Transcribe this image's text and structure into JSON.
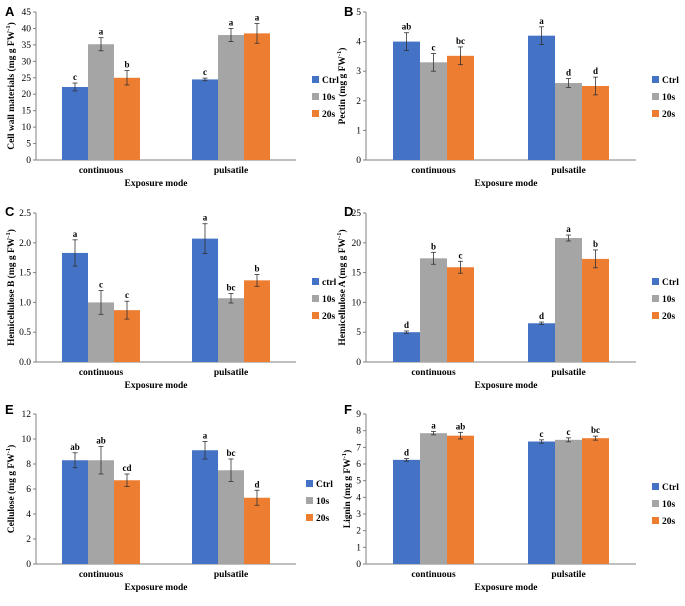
{
  "colors": {
    "Ctrl": "#4472C4",
    "10s": "#A5A5A5",
    "20s": "#ED7D31",
    "axis": "#808080",
    "err": "#333333"
  },
  "chart_data": [
    {
      "panel": "A",
      "type": "bar",
      "ylabel_main": "Cell wall materials  (mg g FW",
      "ylabel_sup": "-1",
      "ylabel_end": ")",
      "xlabel": "Exposure mode",
      "categories": [
        "continuous",
        "pulsatile"
      ],
      "ylim": [
        0,
        45
      ],
      "yticks": [
        0,
        5,
        10,
        15,
        20,
        25,
        30,
        35,
        40,
        45
      ],
      "legend": [
        "Ctrl",
        "10s",
        "20s"
      ],
      "legend_position": "right",
      "series": [
        {
          "name": "Ctrl",
          "values": [
            22.2,
            24.5
          ],
          "errors": [
            1.2,
            0.4
          ],
          "labels": [
            "c",
            "c"
          ]
        },
        {
          "name": "10s",
          "values": [
            35.2,
            38.0
          ],
          "errors": [
            2.0,
            2.0
          ],
          "labels": [
            "a",
            "a"
          ]
        },
        {
          "name": "20s",
          "values": [
            25.0,
            38.5
          ],
          "errors": [
            2.2,
            3.0
          ],
          "labels": [
            "b",
            "a"
          ]
        }
      ]
    },
    {
      "panel": "B",
      "type": "bar",
      "ylabel_main": "Pectin  (mg g FW",
      "ylabel_sup": "-1",
      "ylabel_end": ")",
      "xlabel": "Exposure mode",
      "categories": [
        "continuous",
        "pulsatile"
      ],
      "ylim": [
        0,
        5
      ],
      "yticks": [
        0,
        1,
        2,
        3,
        4,
        5
      ],
      "legend": [
        "Ctrl",
        "10s",
        "20s"
      ],
      "legend_position": "right",
      "series": [
        {
          "name": "Ctrl",
          "values": [
            4.0,
            4.2
          ],
          "errors": [
            0.3,
            0.3
          ],
          "labels": [
            "ab",
            "a"
          ]
        },
        {
          "name": "10s",
          "values": [
            3.3,
            2.6
          ],
          "errors": [
            0.3,
            0.15
          ],
          "labels": [
            "c",
            "d"
          ]
        },
        {
          "name": "20s",
          "values": [
            3.52,
            2.5
          ],
          "errors": [
            0.3,
            0.3
          ],
          "labels": [
            "bc",
            "d"
          ]
        }
      ]
    },
    {
      "panel": "C",
      "type": "bar",
      "ylabel_main": "Hemicellulose B (mg g FW",
      "ylabel_sup": "-1",
      "ylabel_end": ")",
      "xlabel": "Exposure mode",
      "categories": [
        "continuous",
        "pulsatile"
      ],
      "ylim": [
        0,
        2.5
      ],
      "yticks": [
        0,
        0.5,
        1.0,
        1.5,
        2.0,
        2.5
      ],
      "ytick_labels": [
        "0.0",
        "0.5",
        "1.0",
        "1.5",
        "2.0",
        "2.5"
      ],
      "legend": [
        "ctrl",
        "10s",
        "20s"
      ],
      "legend_position": "right",
      "series": [
        {
          "name": "ctrl",
          "values": [
            1.83,
            2.07
          ],
          "errors": [
            0.22,
            0.25
          ],
          "labels": [
            "a",
            "a"
          ]
        },
        {
          "name": "10s",
          "values": [
            1.0,
            1.07
          ],
          "errors": [
            0.2,
            0.08
          ],
          "labels": [
            "c",
            "bc"
          ]
        },
        {
          "name": "20s",
          "values": [
            0.87,
            1.37
          ],
          "errors": [
            0.15,
            0.1
          ],
          "labels": [
            "c",
            "b"
          ]
        }
      ]
    },
    {
      "panel": "D",
      "type": "bar",
      "ylabel_main": "Hemicellulose A  (mg g FW",
      "ylabel_sup": "-1",
      "ylabel_end": ")",
      "xlabel": "Exposure mode",
      "categories": [
        "continuous",
        "pulsatile"
      ],
      "ylim": [
        0,
        25
      ],
      "yticks": [
        0,
        5,
        10,
        15,
        20,
        25
      ],
      "legend": [
        "Ctrl",
        "10s",
        "20s"
      ],
      "legend_position": "right",
      "series": [
        {
          "name": "Ctrl",
          "values": [
            5.0,
            6.5
          ],
          "errors": [
            0.2,
            0.2
          ],
          "labels": [
            "d",
            "d"
          ]
        },
        {
          "name": "10s",
          "values": [
            17.4,
            20.8
          ],
          "errors": [
            1.0,
            0.5
          ],
          "labels": [
            "b",
            "a"
          ]
        },
        {
          "name": "20s",
          "values": [
            15.9,
            17.3
          ],
          "errors": [
            1.0,
            1.5
          ],
          "labels": [
            "c",
            "b"
          ]
        }
      ]
    },
    {
      "panel": "E",
      "type": "bar",
      "ylabel_main": "Cellulose  (mg g FW",
      "ylabel_sup": "-1",
      "ylabel_end": ")",
      "xlabel": "Exposure mode",
      "categories": [
        "continuous",
        "pulsatile"
      ],
      "ylim": [
        0,
        12
      ],
      "yticks": [
        0,
        2,
        4,
        6,
        8,
        10,
        12
      ],
      "legend": [
        "Ctrl",
        "10s",
        "20s"
      ],
      "legend_position": "right",
      "series": [
        {
          "name": "Ctrl",
          "values": [
            8.3,
            9.1
          ],
          "errors": [
            0.6,
            0.7
          ],
          "labels": [
            "ab",
            "a"
          ]
        },
        {
          "name": "10s",
          "values": [
            8.3,
            7.5
          ],
          "errors": [
            1.1,
            0.9
          ],
          "labels": [
            "ab",
            "bc"
          ]
        },
        {
          "name": "20s",
          "values": [
            6.7,
            5.3
          ],
          "errors": [
            0.5,
            0.6
          ],
          "labels": [
            "cd",
            "d"
          ]
        }
      ]
    },
    {
      "panel": "F",
      "type": "bar",
      "ylabel_main": "Lignin  (mg g FW",
      "ylabel_sup": "-1",
      "ylabel_end": ")",
      "xlabel": "Exposure mode",
      "categories": [
        "continuous",
        "pulsatile"
      ],
      "ylim": [
        0,
        9
      ],
      "yticks": [
        0,
        1,
        2,
        3,
        4,
        5,
        6,
        7,
        8,
        9
      ],
      "legend": [
        "Ctrl",
        "10s",
        "20s"
      ],
      "legend_position": "right",
      "series": [
        {
          "name": "Ctrl",
          "values": [
            6.25,
            7.35
          ],
          "errors": [
            0.08,
            0.1
          ],
          "labels": [
            "d",
            "c"
          ]
        },
        {
          "name": "10s",
          "values": [
            7.85,
            7.45
          ],
          "errors": [
            0.1,
            0.12
          ],
          "labels": [
            "a",
            "c"
          ]
        },
        {
          "name": "20s",
          "values": [
            7.7,
            7.55
          ],
          "errors": [
            0.2,
            0.12
          ],
          "labels": [
            "ab",
            "bc"
          ]
        }
      ]
    }
  ]
}
